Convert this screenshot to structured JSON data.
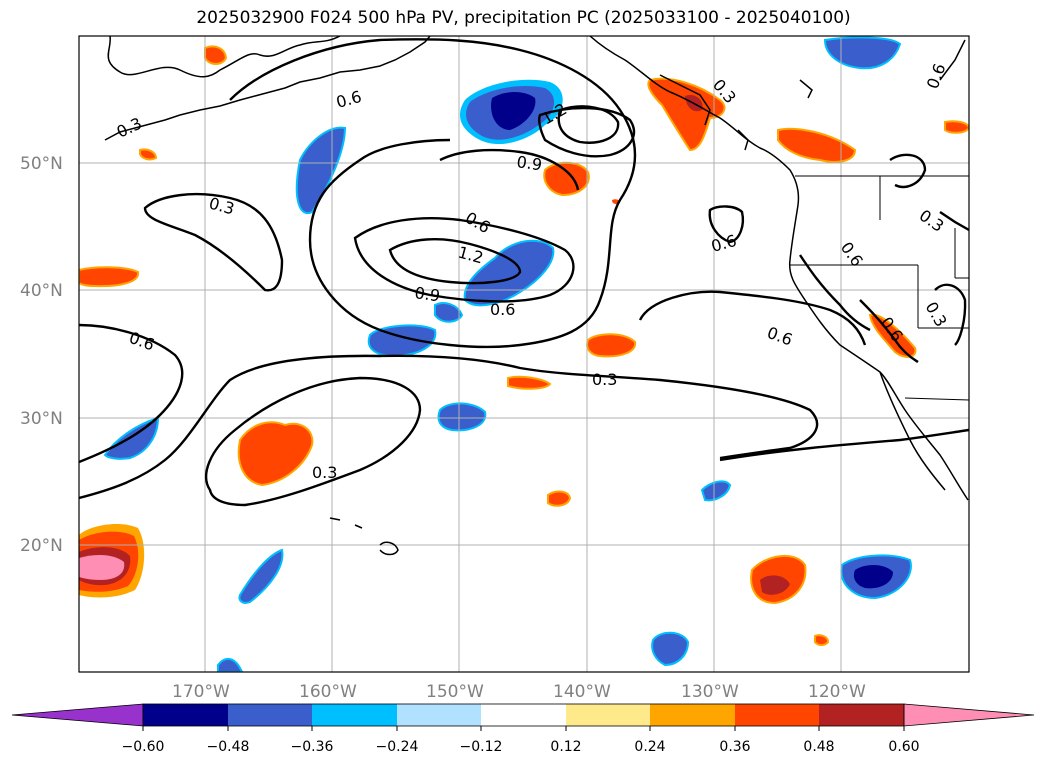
{
  "title": "2025032900 F024 500 hPa PV, precipitation PC (2025033100 - 2025040100)",
  "lat_labels": [
    "50°N",
    "40°N",
    "30°N",
    "20°N"
  ],
  "lon_labels": [
    "170°W",
    "160°W",
    "150°W",
    "140°W",
    "130°W",
    "120°W"
  ],
  "contour_labels": [
    "0.3",
    "0.3",
    "0.3",
    "0.3",
    "0.3",
    "0.3",
    "0.3",
    "0.6",
    "0.6",
    "0.6",
    "0.6",
    "0.6",
    "0.6",
    "0.6",
    "0.6",
    "0.6",
    "0.9",
    "0.9",
    "1.2",
    "1.2"
  ],
  "colorbar": {
    "ticks": [
      "−0.60",
      "−0.48",
      "−0.36",
      "−0.24",
      "−0.12",
      "0.12",
      "0.24",
      "0.36",
      "0.48",
      "0.60"
    ],
    "colors": [
      "#9932cc",
      "#00008b",
      "#3a5fcd",
      "#00bfff",
      "#b0e2ff",
      "#ffffff",
      "#ffea8b",
      "#ffa500",
      "#ff4500",
      "#b22222",
      "#ff8eb4",
      "#ff8eb4"
    ]
  },
  "colors": {
    "grid": "#b0b0b0",
    "coast": "#000000",
    "contour": "#000000"
  }
}
